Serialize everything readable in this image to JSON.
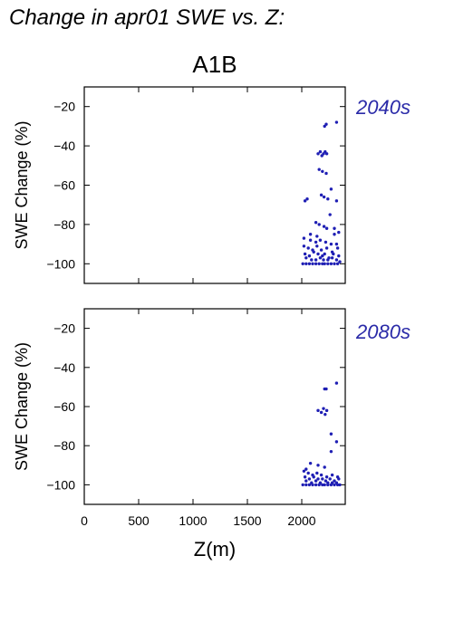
{
  "figure": {
    "title": "Change in apr01 SWE vs. Z:",
    "scenario": "A1B",
    "xlabel": "Z(m)",
    "ylabel": "SWE Change (%)",
    "point_color": "#1f1fb4"
  },
  "chart_data": [
    {
      "type": "scatter",
      "period_label": "2040s",
      "xlabel": "Z(m)",
      "ylabel": "SWE Change (%)",
      "xlim": [
        0,
        2400
      ],
      "ylim": [
        -110,
        -10
      ],
      "xticks": [
        0,
        500,
        1000,
        1500,
        2000
      ],
      "yticks": [
        -20,
        -40,
        -60,
        -80,
        -100
      ],
      "grid": false,
      "points": [
        [
          2320,
          -28
        ],
        [
          2210,
          -30
        ],
        [
          2225,
          -29
        ],
        [
          2150,
          -44
        ],
        [
          2170,
          -43
        ],
        [
          2185,
          -45
        ],
        [
          2200,
          -44
        ],
        [
          2215,
          -43
        ],
        [
          2230,
          -44
        ],
        [
          2160,
          -52
        ],
        [
          2190,
          -53
        ],
        [
          2225,
          -54
        ],
        [
          2270,
          -62
        ],
        [
          2180,
          -65
        ],
        [
          2205,
          -66
        ],
        [
          2240,
          -67
        ],
        [
          2030,
          -68
        ],
        [
          2050,
          -67
        ],
        [
          2320,
          -68
        ],
        [
          2260,
          -75
        ],
        [
          2130,
          -79
        ],
        [
          2160,
          -80
        ],
        [
          2205,
          -81
        ],
        [
          2230,
          -82
        ],
        [
          2300,
          -82
        ],
        [
          2080,
          -85
        ],
        [
          2140,
          -86
        ],
        [
          2300,
          -85
        ],
        [
          2340,
          -84
        ],
        [
          2020,
          -87
        ],
        [
          2080,
          -88
        ],
        [
          2130,
          -89
        ],
        [
          2170,
          -88
        ],
        [
          2220,
          -89
        ],
        [
          2270,
          -90
        ],
        [
          2320,
          -90
        ],
        [
          2020,
          -91
        ],
        [
          2060,
          -92
        ],
        [
          2100,
          -93
        ],
        [
          2140,
          -91
        ],
        [
          2180,
          -93
        ],
        [
          2230,
          -92
        ],
        [
          2280,
          -94
        ],
        [
          2330,
          -92
        ],
        [
          2030,
          -95
        ],
        [
          2070,
          -96
        ],
        [
          2110,
          -94
        ],
        [
          2150,
          -95
        ],
        [
          2190,
          -96
        ],
        [
          2210,
          -95
        ],
        [
          2250,
          -97
        ],
        [
          2290,
          -95
        ],
        [
          2340,
          -96
        ],
        [
          2040,
          -97
        ],
        [
          2090,
          -98
        ],
        [
          2130,
          -98
        ],
        [
          2170,
          -97
        ],
        [
          2200,
          -98
        ],
        [
          2240,
          -98
        ],
        [
          2280,
          -97
        ],
        [
          2320,
          -98
        ],
        [
          2010,
          -100
        ],
        [
          2040,
          -100
        ],
        [
          2070,
          -100
        ],
        [
          2100,
          -100
        ],
        [
          2130,
          -100
        ],
        [
          2160,
          -100
        ],
        [
          2190,
          -100
        ],
        [
          2210,
          -100
        ],
        [
          2240,
          -100
        ],
        [
          2270,
          -100
        ],
        [
          2300,
          -100
        ],
        [
          2330,
          -100
        ],
        [
          2350,
          -99
        ]
      ]
    },
    {
      "type": "scatter",
      "period_label": "2080s",
      "xlabel": "Z(m)",
      "ylabel": "SWE Change (%)",
      "xlim": [
        0,
        2400
      ],
      "ylim": [
        -110,
        -10
      ],
      "xticks": [
        0,
        500,
        1000,
        1500,
        2000
      ],
      "yticks": [
        -20,
        -40,
        -60,
        -80,
        -100
      ],
      "grid": false,
      "points": [
        [
          2320,
          -48
        ],
        [
          2210,
          -51
        ],
        [
          2225,
          -51
        ],
        [
          2150,
          -62
        ],
        [
          2180,
          -63
        ],
        [
          2200,
          -61
        ],
        [
          2215,
          -64
        ],
        [
          2230,
          -62
        ],
        [
          2270,
          -74
        ],
        [
          2320,
          -78
        ],
        [
          2270,
          -83
        ],
        [
          2080,
          -89
        ],
        [
          2150,
          -90
        ],
        [
          2210,
          -91
        ],
        [
          2040,
          -92
        ],
        [
          2020,
          -93
        ],
        [
          2060,
          -94
        ],
        [
          2100,
          -95
        ],
        [
          2140,
          -94
        ],
        [
          2180,
          -95
        ],
        [
          2230,
          -96
        ],
        [
          2280,
          -95
        ],
        [
          2330,
          -96
        ],
        [
          2030,
          -96
        ],
        [
          2070,
          -97
        ],
        [
          2110,
          -96
        ],
        [
          2150,
          -97
        ],
        [
          2190,
          -97
        ],
        [
          2220,
          -98
        ],
        [
          2260,
          -97
        ],
        [
          2300,
          -98
        ],
        [
          2340,
          -97
        ],
        [
          2040,
          -98
        ],
        [
          2090,
          -99
        ],
        [
          2130,
          -98
        ],
        [
          2170,
          -99
        ],
        [
          2240,
          -99
        ],
        [
          2280,
          -99
        ],
        [
          2320,
          -99
        ],
        [
          2010,
          -100
        ],
        [
          2040,
          -100
        ],
        [
          2070,
          -100
        ],
        [
          2100,
          -100
        ],
        [
          2130,
          -100
        ],
        [
          2160,
          -100
        ],
        [
          2190,
          -100
        ],
        [
          2210,
          -100
        ],
        [
          2240,
          -100
        ],
        [
          2270,
          -100
        ],
        [
          2300,
          -100
        ],
        [
          2330,
          -100
        ],
        [
          2350,
          -100
        ]
      ]
    }
  ]
}
